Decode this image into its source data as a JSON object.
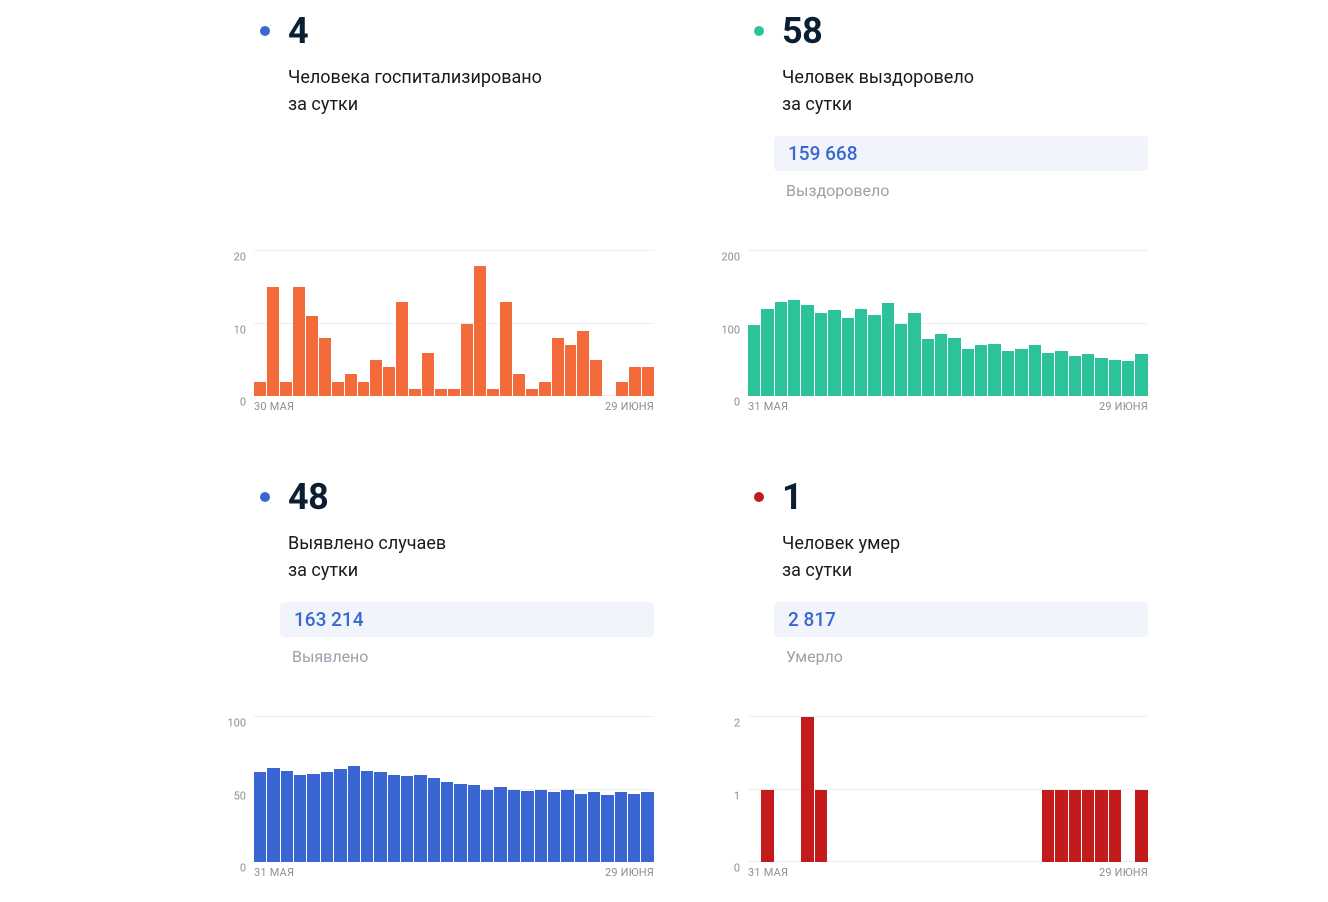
{
  "background_color": "#ffffff",
  "panels": [
    {
      "key": "hospitalized",
      "dot_color": "#3a66d4",
      "value": "4",
      "subtitle_line1": "Человека госпитализировано",
      "subtitle_line2": "за сутки",
      "total_value": null,
      "total_label": null,
      "chart": {
        "type": "bar",
        "bar_color": "#f36b3b",
        "grid_color": "#eceef1",
        "ymax": 20,
        "yticks": [
          0,
          10,
          20
        ],
        "x_start": "30 МАЯ",
        "x_end": "29 ИЮНЯ",
        "values": [
          2,
          15,
          2,
          15,
          11,
          8,
          2,
          3,
          2,
          5,
          4,
          13,
          1,
          6,
          1,
          1,
          10,
          18,
          1,
          13,
          3,
          1,
          2,
          8,
          7,
          9,
          5,
          0,
          2,
          4,
          4
        ]
      }
    },
    {
      "key": "recovered",
      "dot_color": "#2cc39a",
      "value": "58",
      "subtitle_line1": "Человек выздоровело",
      "subtitle_line2": "за сутки",
      "total_value": "159 668",
      "total_label": "Выздоровело",
      "chart": {
        "type": "bar",
        "bar_color": "#2cc39a",
        "grid_color": "#eceef1",
        "ymax": 200,
        "yticks": [
          0,
          100,
          200
        ],
        "x_start": "31 МАЯ",
        "x_end": "29 ИЮНЯ",
        "values": [
          98,
          120,
          130,
          133,
          125,
          115,
          118,
          108,
          120,
          112,
          128,
          100,
          114,
          78,
          85,
          80,
          65,
          70,
          72,
          62,
          65,
          70,
          60,
          62,
          55,
          58,
          52,
          50,
          48,
          58
        ]
      }
    },
    {
      "key": "cases",
      "dot_color": "#3a66d4",
      "value": "48",
      "subtitle_line1": "Выявлено случаев",
      "subtitle_line2": "за сутки",
      "total_value": "163 214",
      "total_label": "Выявлено",
      "chart": {
        "type": "bar",
        "bar_color": "#3a66d4",
        "grid_color": "#eceef1",
        "ymax": 100,
        "yticks": [
          0,
          50,
          100
        ],
        "x_start": "31 МАЯ",
        "x_end": "29 ИЮНЯ",
        "values": [
          62,
          65,
          63,
          60,
          61,
          62,
          64,
          66,
          63,
          62,
          60,
          59,
          60,
          58,
          55,
          54,
          53,
          50,
          52,
          50,
          49,
          50,
          48,
          50,
          47,
          48,
          46,
          48,
          47,
          48
        ]
      }
    },
    {
      "key": "deaths",
      "dot_color": "#c31b1b",
      "value": "1",
      "subtitle_line1": "Человек умер",
      "subtitle_line2": "за сутки",
      "total_value": "2 817",
      "total_label": "Умерло",
      "chart": {
        "type": "bar",
        "bar_color": "#c31b1b",
        "grid_color": "#eceef1",
        "ymax": 2,
        "yticks": [
          0,
          1,
          2
        ],
        "x_start": "31 МАЯ",
        "x_end": "29 ИЮНЯ",
        "values": [
          0,
          1,
          0,
          0,
          2,
          1,
          0,
          0,
          0,
          0,
          0,
          0,
          0,
          0,
          0,
          0,
          0,
          0,
          0,
          0,
          0,
          0,
          1,
          1,
          1,
          1,
          1,
          1,
          0,
          1
        ]
      }
    }
  ]
}
